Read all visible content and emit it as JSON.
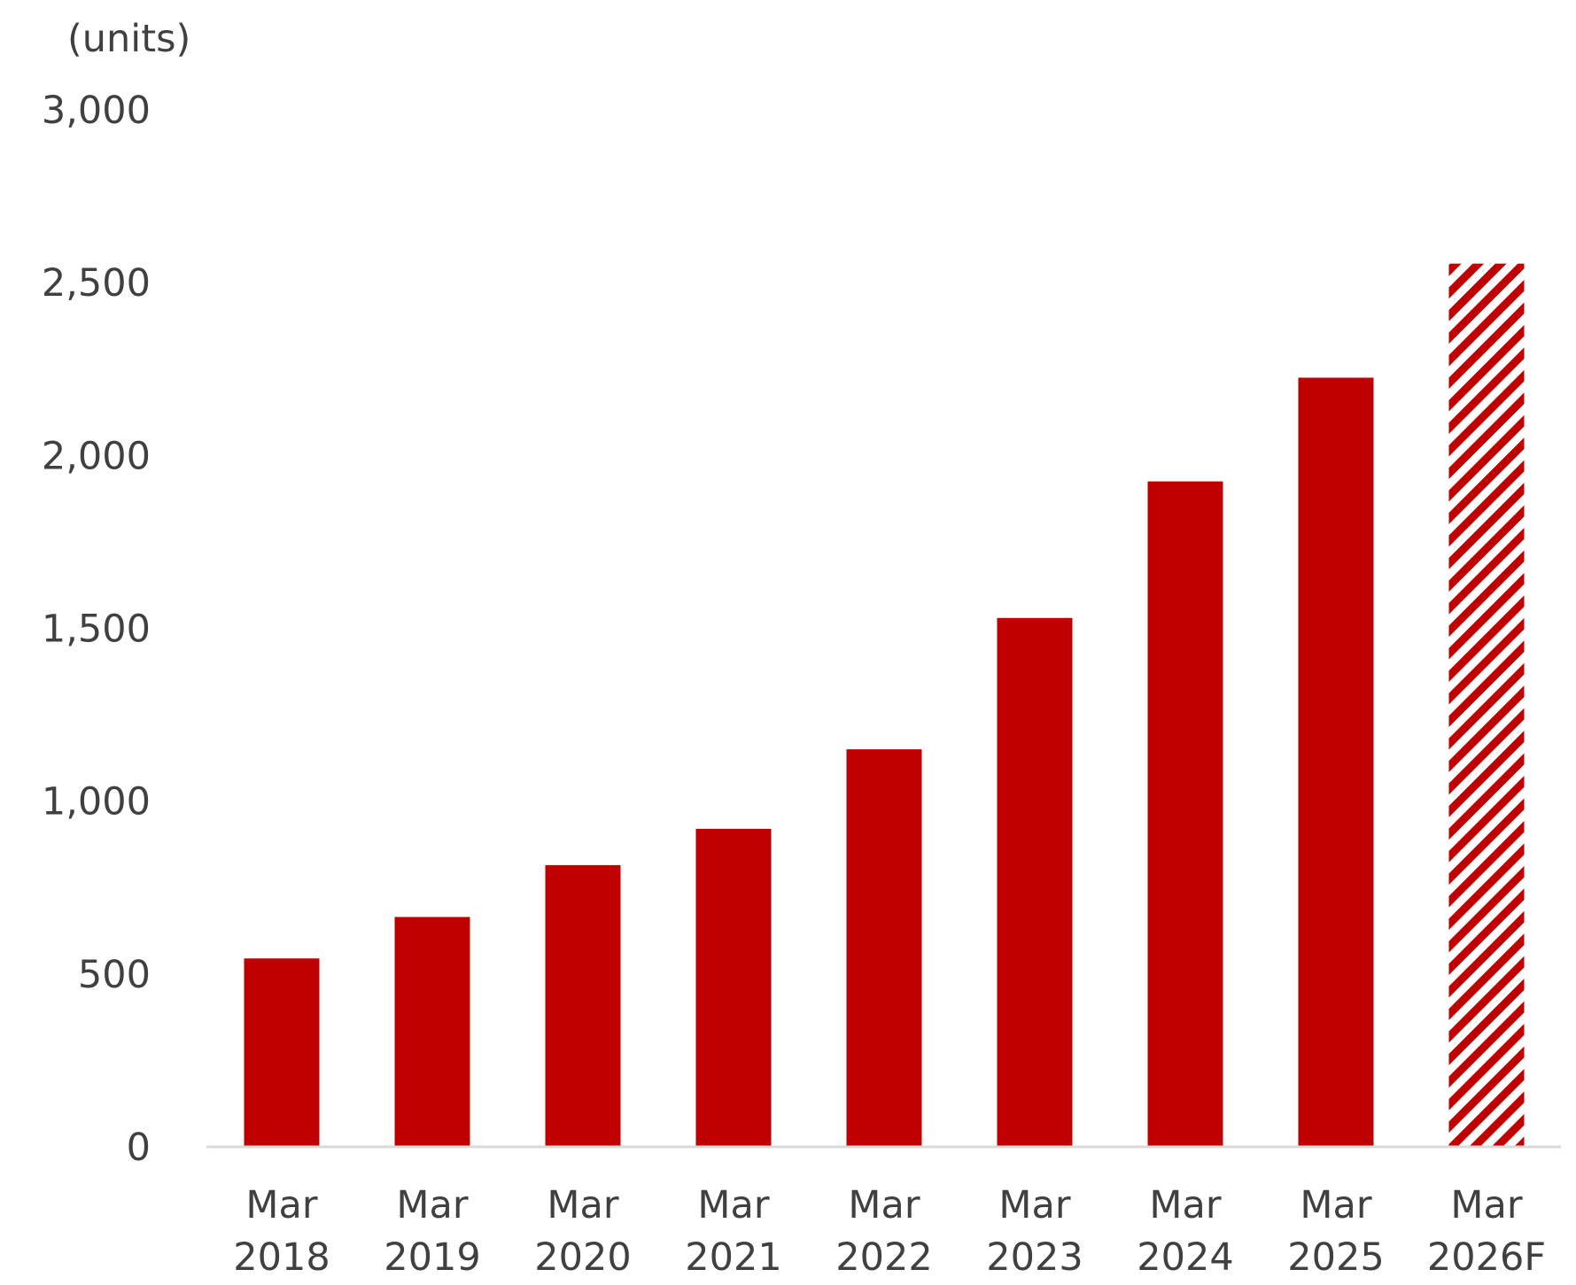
{
  "chart_data": {
    "type": "bar",
    "unit_label": "(units)",
    "categories": [
      {
        "line1": "Mar",
        "line2": "2018"
      },
      {
        "line1": "Mar",
        "line2": "2019"
      },
      {
        "line1": "Mar",
        "line2": "2020"
      },
      {
        "line1": "Mar",
        "line2": "2021"
      },
      {
        "line1": "Mar",
        "line2": "2022"
      },
      {
        "line1": "Mar",
        "line2": "2023"
      },
      {
        "line1": "Mar",
        "line2": "2024"
      },
      {
        "line1": "Mar",
        "line2": "2025"
      },
      {
        "line1": "Mar",
        "line2": "2026F"
      }
    ],
    "values": [
      545,
      665,
      815,
      920,
      1150,
      1530,
      1925,
      2225,
      2555
    ],
    "forecast": [
      false,
      false,
      false,
      false,
      false,
      false,
      false,
      false,
      true
    ],
    "ylim": [
      0,
      3000
    ],
    "yticks": [
      {
        "value": 0,
        "label": "0"
      },
      {
        "value": 500,
        "label": "500"
      },
      {
        "value": 1000,
        "label": "1,000"
      },
      {
        "value": 1500,
        "label": "1,500"
      },
      {
        "value": 2000,
        "label": "2,000"
      },
      {
        "value": 2500,
        "label": "2,500"
      },
      {
        "value": 3000,
        "label": "3,000"
      }
    ],
    "grid": false,
    "colors": {
      "bar": "#c00000",
      "axis": "#d9d9d9",
      "text": "#404040"
    }
  }
}
